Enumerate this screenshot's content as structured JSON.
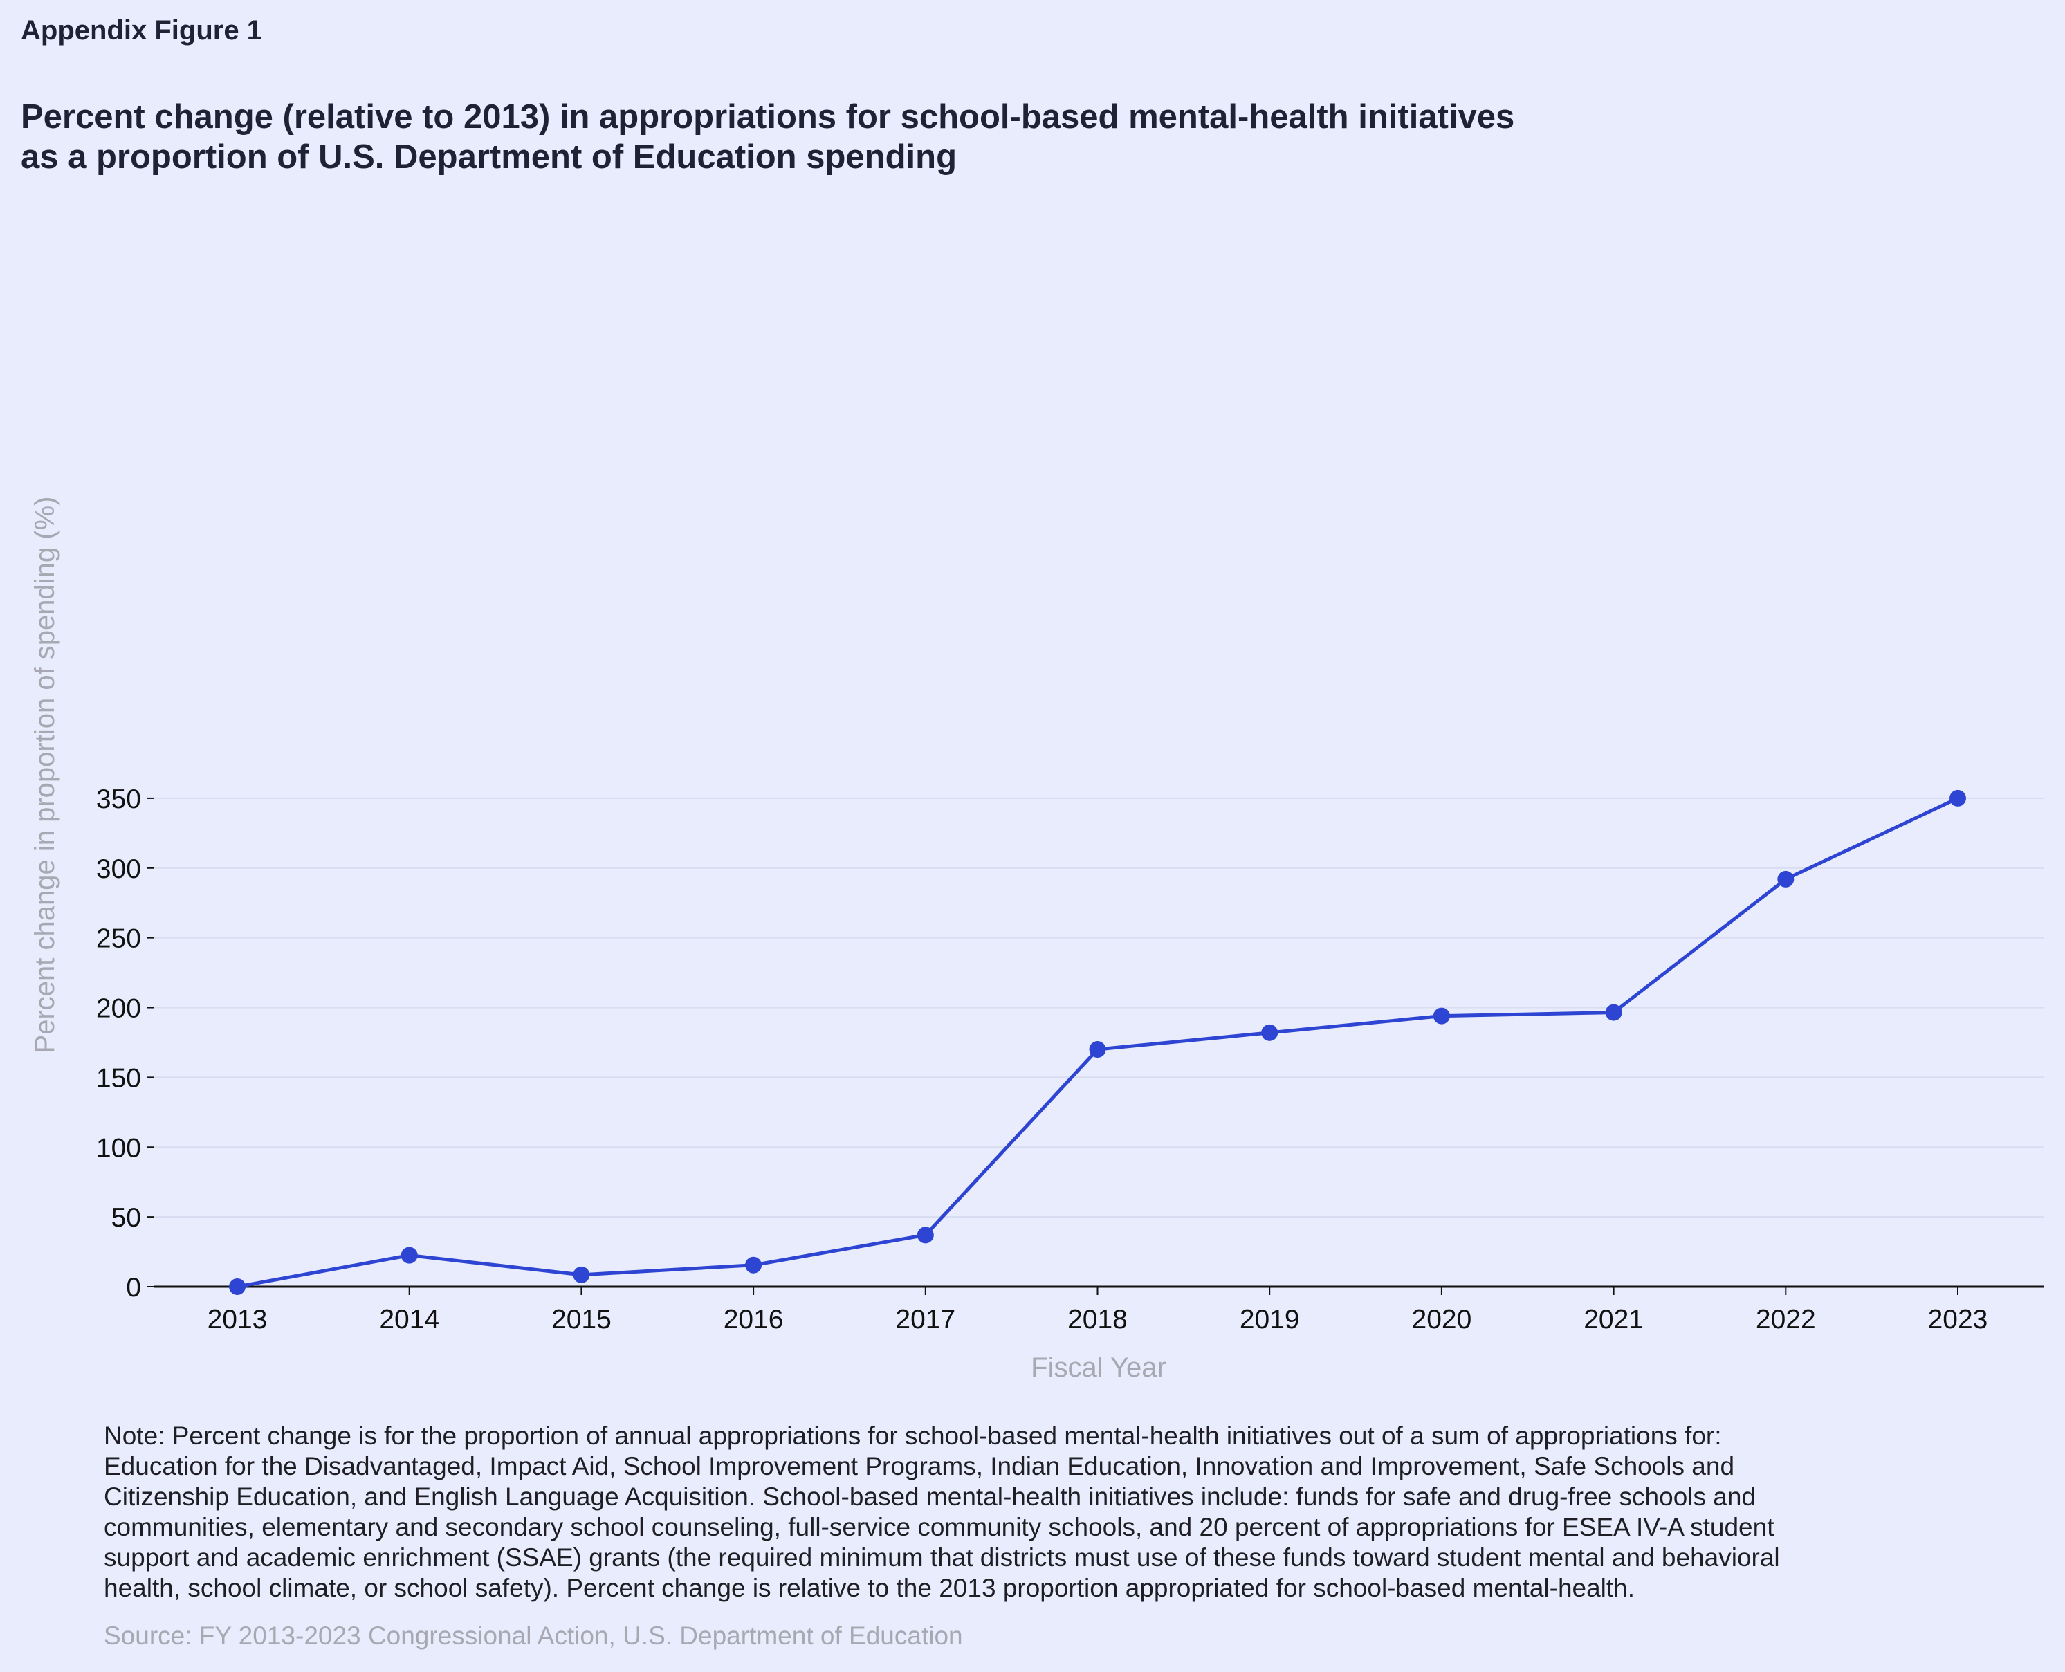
{
  "header": {
    "eyebrow": "Appendix Figure 1",
    "title_lines": [
      "Percent change (relative to 2013) in appropriations for school-based mental-health initiatives",
      "as a proportion of U.S. Department of Education spending"
    ]
  },
  "chart_data": {
    "type": "line",
    "xlabel": "Fiscal Year",
    "ylabel": "Percent change in proportion of spending (%)",
    "x": [
      "2013",
      "2014",
      "2015",
      "2016",
      "2017",
      "2018",
      "2019",
      "2020",
      "2021",
      "2022",
      "2023"
    ],
    "series": [
      {
        "values": [
          0,
          22.5,
          8.5,
          15.5,
          37,
          170,
          182,
          194,
          196.5,
          292,
          350
        ]
      }
    ],
    "yticks": [
      0,
      50,
      100,
      150,
      200,
      250,
      300,
      350
    ],
    "ylim": [
      0,
      370
    ],
    "grid": "horizontal",
    "legend": "none",
    "colors": {
      "line": "#2e44d2",
      "grid": "#d8dcf0",
      "axis": "#111111",
      "background": "#e8ecfc"
    }
  },
  "footer": {
    "note_lines": [
      "Note: Percent change is for the proportion of annual appropriations for school-based mental-health initiatives out of a sum of appropriations for:",
      "Education for the Disadvantaged, Impact Aid, School Improvement Programs, Indian Education, Innovation and Improvement, Safe Schools and",
      "Citizenship Education, and English Language Acquisition. School-based mental-health initiatives include: funds for safe and drug-free schools and",
      "communities, elementary and secondary school counseling, full-service community schools, and 20 percent of appropriations for ESEA IV-A student",
      "support and academic enrichment (SSAE) grants (the required minimum that districts must use of these funds toward student mental and behavioral",
      "health, school climate, or school safety). Percent change is relative to the 2013 proportion appropriated for school-based mental-health."
    ],
    "source": "Source: FY 2013-2023 Congressional Action, U.S. Department of Education"
  }
}
